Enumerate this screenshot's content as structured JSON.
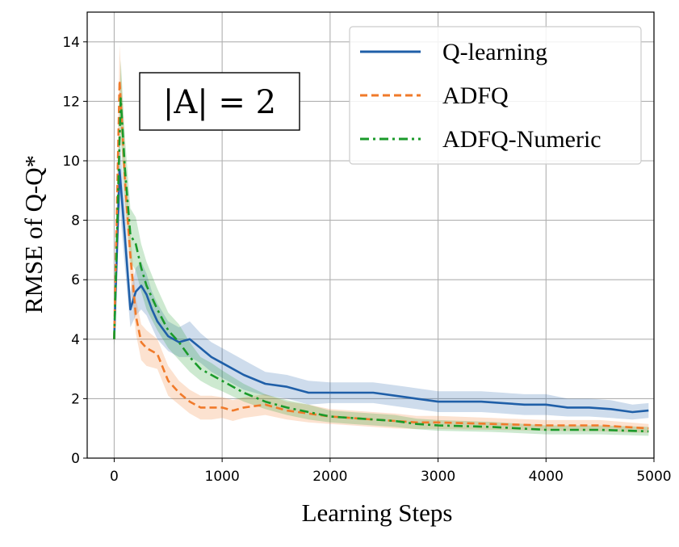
{
  "chart_data": {
    "type": "line",
    "title": "",
    "xlabel": "Learning Steps",
    "ylabel": "RMSE of Q-Q*",
    "xlim": [
      -250,
      5000
    ],
    "ylim": [
      0,
      15
    ],
    "xticks": [
      0,
      1000,
      2000,
      3000,
      4000,
      5000
    ],
    "xtick_labels": [
      "0",
      "1000",
      "2000",
      "3000",
      "4000",
      "5000"
    ],
    "yticks": [
      0,
      2,
      4,
      6,
      8,
      10,
      12,
      14
    ],
    "ytick_labels": [
      "0",
      "2",
      "4",
      "6",
      "8",
      "10",
      "12",
      "14"
    ],
    "grid": true,
    "legend_position": "top-right",
    "annotation": "|A| = 2",
    "series": [
      {
        "name": "Q-learning",
        "color": "#1f5fa8",
        "linestyle": "solid",
        "x": [
          0,
          50,
          100,
          150,
          200,
          250,
          300,
          350,
          400,
          500,
          600,
          700,
          800,
          900,
          1000,
          1200,
          1400,
          1600,
          1800,
          2000,
          2200,
          2400,
          2600,
          2800,
          3000,
          3200,
          3400,
          3600,
          3800,
          4000,
          4200,
          4400,
          4600,
          4800,
          4950
        ],
        "y": [
          4.0,
          9.7,
          7.4,
          5.0,
          5.6,
          5.8,
          5.5,
          5.0,
          4.6,
          4.1,
          3.9,
          4.0,
          3.7,
          3.4,
          3.2,
          2.8,
          2.5,
          2.4,
          2.2,
          2.2,
          2.2,
          2.2,
          2.1,
          2.0,
          1.9,
          1.9,
          1.9,
          1.85,
          1.8,
          1.8,
          1.7,
          1.7,
          1.65,
          1.55,
          1.6
        ],
        "band_lo": [
          3.8,
          8.5,
          6.4,
          4.4,
          4.8,
          5.0,
          4.8,
          4.4,
          4.0,
          3.6,
          3.4,
          3.4,
          3.2,
          2.9,
          2.7,
          2.3,
          2.1,
          2.0,
          1.8,
          1.85,
          1.85,
          1.85,
          1.75,
          1.65,
          1.55,
          1.55,
          1.55,
          1.5,
          1.45,
          1.45,
          1.4,
          1.4,
          1.35,
          1.3,
          1.35
        ],
        "band_hi": [
          4.2,
          10.9,
          8.4,
          5.6,
          6.4,
          6.6,
          6.2,
          5.6,
          5.2,
          4.6,
          4.4,
          4.6,
          4.2,
          3.9,
          3.7,
          3.3,
          2.9,
          2.8,
          2.6,
          2.55,
          2.55,
          2.55,
          2.45,
          2.35,
          2.25,
          2.25,
          2.25,
          2.2,
          2.15,
          2.15,
          2.0,
          2.0,
          1.95,
          1.8,
          1.85
        ]
      },
      {
        "name": "ADFQ",
        "color": "#f07a2a",
        "linestyle": "dashed",
        "x": [
          0,
          50,
          80,
          100,
          150,
          200,
          250,
          300,
          400,
          500,
          600,
          700,
          800,
          900,
          1000,
          1100,
          1200,
          1400,
          1600,
          1800,
          2000,
          2200,
          2400,
          2600,
          2800,
          3000,
          3500,
          4000,
          4500,
          4950
        ],
        "y": [
          4.0,
          12.7,
          10.8,
          9.3,
          6.8,
          4.8,
          3.9,
          3.7,
          3.5,
          2.6,
          2.2,
          1.9,
          1.7,
          1.7,
          1.7,
          1.6,
          1.7,
          1.8,
          1.6,
          1.5,
          1.4,
          1.35,
          1.3,
          1.25,
          1.2,
          1.2,
          1.15,
          1.1,
          1.1,
          1.0
        ],
        "band_lo": [
          3.8,
          11.5,
          9.8,
          8.4,
          6.0,
          4.2,
          3.3,
          3.1,
          3.0,
          2.1,
          1.8,
          1.5,
          1.3,
          1.3,
          1.35,
          1.25,
          1.35,
          1.45,
          1.3,
          1.2,
          1.15,
          1.1,
          1.05,
          1.0,
          0.98,
          0.98,
          0.95,
          0.92,
          0.9,
          0.85
        ],
        "band_hi": [
          4.2,
          13.9,
          11.8,
          10.2,
          7.6,
          5.4,
          4.5,
          4.3,
          4.0,
          3.1,
          2.6,
          2.3,
          2.1,
          2.1,
          2.05,
          1.95,
          2.05,
          2.15,
          1.9,
          1.8,
          1.65,
          1.6,
          1.55,
          1.5,
          1.42,
          1.42,
          1.35,
          1.28,
          1.28,
          1.15
        ]
      },
      {
        "name": "ADFQ-Numeric",
        "color": "#1a9a2a",
        "linestyle": "dashdot",
        "x": [
          0,
          60,
          100,
          150,
          200,
          250,
          300,
          400,
          500,
          600,
          700,
          800,
          900,
          1000,
          1200,
          1400,
          1600,
          1800,
          2000,
          2200,
          2400,
          2600,
          2800,
          3000,
          3500,
          4000,
          4500,
          4950
        ],
        "y": [
          4.0,
          12.1,
          9.7,
          7.5,
          7.2,
          6.4,
          5.8,
          5.0,
          4.3,
          3.9,
          3.4,
          3.0,
          2.8,
          2.6,
          2.2,
          1.9,
          1.7,
          1.55,
          1.4,
          1.35,
          1.3,
          1.25,
          1.15,
          1.1,
          1.05,
          0.95,
          0.95,
          0.9
        ],
        "band_lo": [
          3.8,
          10.8,
          8.6,
          6.6,
          6.3,
          5.6,
          5.0,
          4.3,
          3.7,
          3.3,
          2.9,
          2.6,
          2.4,
          2.25,
          1.9,
          1.65,
          1.45,
          1.3,
          1.2,
          1.15,
          1.1,
          1.05,
          0.97,
          0.92,
          0.88,
          0.8,
          0.8,
          0.75
        ],
        "band_hi": [
          4.2,
          13.4,
          10.8,
          8.4,
          8.1,
          7.2,
          6.6,
          5.7,
          4.9,
          4.5,
          3.9,
          3.4,
          3.2,
          2.95,
          2.5,
          2.15,
          1.95,
          1.8,
          1.6,
          1.55,
          1.5,
          1.45,
          1.33,
          1.28,
          1.22,
          1.1,
          1.1,
          1.05
        ]
      }
    ]
  }
}
